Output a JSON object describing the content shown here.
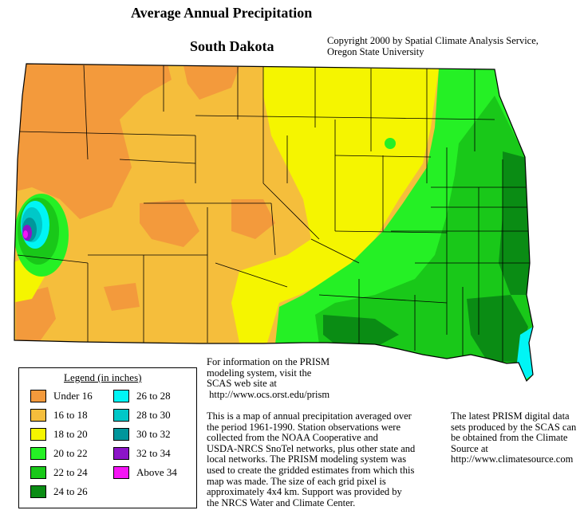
{
  "header": {
    "title": "Average Annual Precipitation",
    "state": "South Dakota",
    "copyright_line1": "Copyright 2000 by Spatial Climate Analysis Service,",
    "copyright_line2": "Oregon State University"
  },
  "legend": {
    "title": "Legend (in inches)",
    "items": [
      {
        "label": "Under 16",
        "color": "#f39a3c"
      },
      {
        "label": "16 to 18",
        "color": "#f5be3c"
      },
      {
        "label": "18 to 20",
        "color": "#f5f500"
      },
      {
        "label": "20 to 22",
        "color": "#25f025"
      },
      {
        "label": "22 to 24",
        "color": "#19c819"
      },
      {
        "label": "24 to 26",
        "color": "#0a8c14"
      },
      {
        "label": "26 to 28",
        "color": "#00f5f5"
      },
      {
        "label": "28 to 30",
        "color": "#00c8c8"
      },
      {
        "label": "30 to 32",
        "color": "#00969b"
      },
      {
        "label": "32 to 34",
        "color": "#8c14c8"
      },
      {
        "label": "Above 34",
        "color": "#f514f5"
      }
    ]
  },
  "info": {
    "prism_lines": [
      "For information on the PRISM",
      "modeling system, visit the",
      "SCAS web site at",
      " http://www.ocs.orst.edu/prism"
    ],
    "description_lines": [
      "This is a map of annual precipitation averaged over",
      "the period 1961-1990. Station observations were",
      "collected from the NOAA Cooperative and",
      "USDA-NRCS SnoTel networks, plus other state and",
      "local networks.  The PRISM modeling system was",
      "used to create the gridded estimates from which this",
      "map was made.  The size of each grid pixel is",
      "approximately 4x4 km.  Support was provided by",
      "the NRCS Water and Climate Center."
    ],
    "latest_lines": [
      "The latest PRISM digital data",
      "sets produced by the SCAS can",
      "be obtained from the Climate",
      "Source at",
      "http://www.climatesource.com"
    ]
  },
  "map": {
    "colors": {
      "under16": "#f39a3c",
      "c16_18": "#f5be3c",
      "c18_20": "#f5f500",
      "c20_22": "#25f025",
      "c22_24": "#19c819",
      "c24_26": "#0a8c14",
      "c26_28": "#00f5f5",
      "c28_30": "#00c8c8",
      "c30_32": "#00969b",
      "c32_34": "#8c14c8",
      "above34": "#f514f5",
      "county_line": "#000000"
    }
  }
}
